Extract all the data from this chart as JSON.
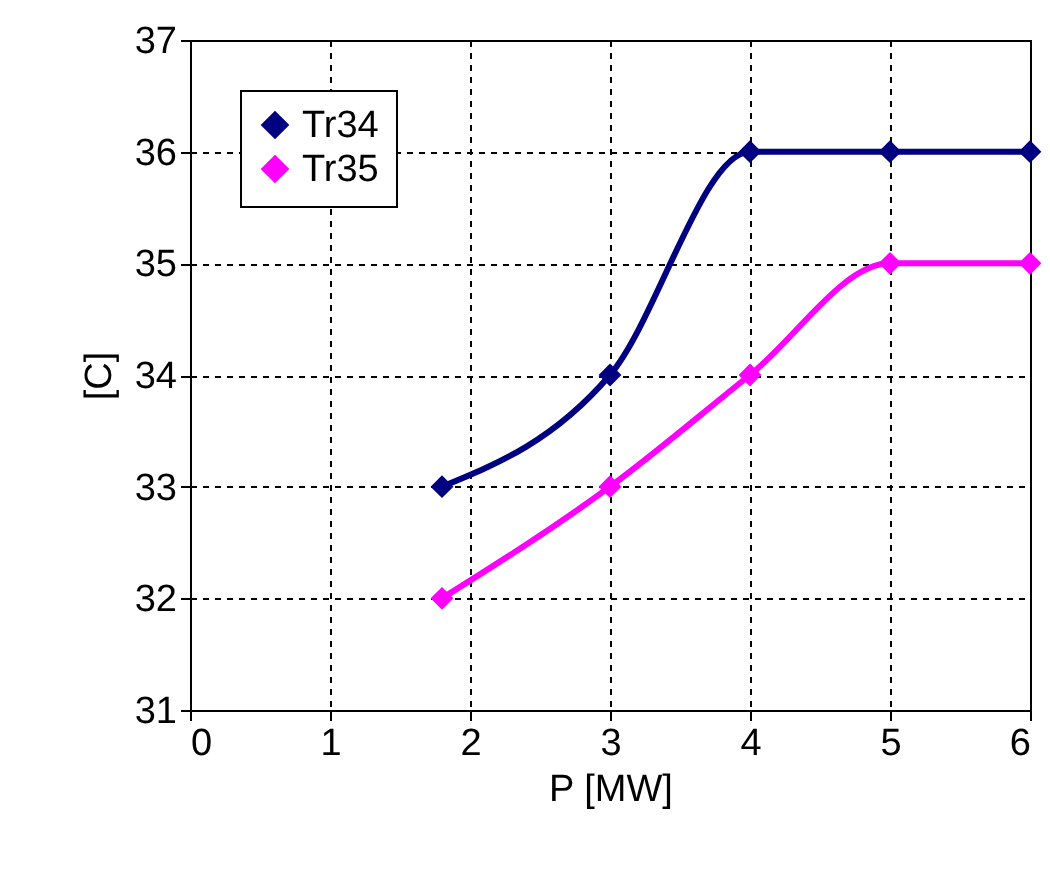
{
  "chart_data": {
    "type": "line",
    "xlabel": "P [MW]",
    "ylabel": "[C]",
    "series": [
      {
        "name": "Tr34",
        "color": "#000080",
        "x": [
          1.8,
          3,
          4,
          5,
          6
        ],
        "values": [
          33,
          34,
          36,
          36,
          36
        ]
      },
      {
        "name": "Tr35",
        "color": "#ff00ff",
        "x": [
          1.8,
          3,
          4,
          5,
          6
        ],
        "values": [
          32,
          33,
          34,
          35,
          35
        ]
      }
    ],
    "xlim": [
      0,
      6
    ],
    "xticks": [
      0,
      1,
      2,
      3,
      4,
      5,
      6
    ],
    "ylim": [
      31,
      37
    ],
    "yticks": [
      31,
      32,
      33,
      34,
      35,
      36,
      37
    ],
    "grid": true,
    "legend": "top left",
    "marker": "diamond",
    "line_style": "solid"
  }
}
